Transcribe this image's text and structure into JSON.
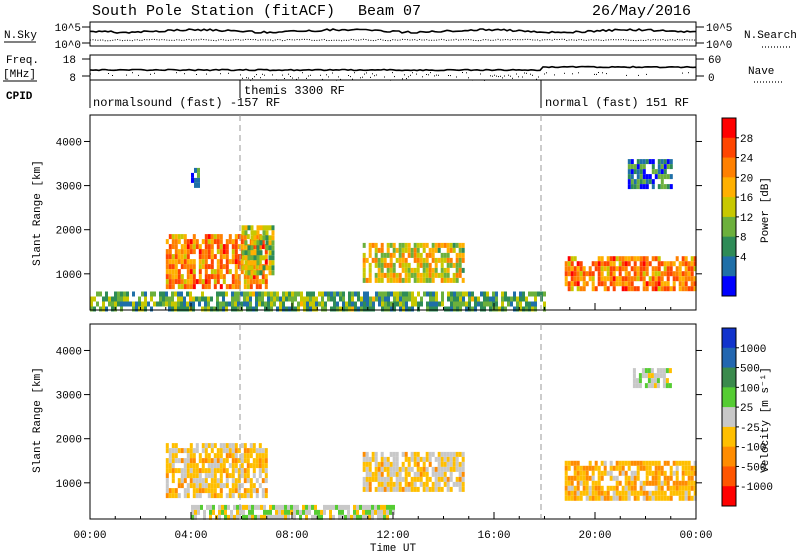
{
  "header": {
    "station": "South Pole Station (fitACF)",
    "beam": "Beam 07",
    "date": "26/May/2016"
  },
  "summary": {
    "nsky_label": "N.Sky",
    "nsky_ticks": [
      "10^5",
      "10^0"
    ],
    "nsearch_label": "N.Search",
    "nsearch_ticks": [
      "10^5",
      "10^0"
    ],
    "freq_label_1": "Freq.",
    "freq_label_2": "[MHz]",
    "freq_ticks": [
      "18",
      "8"
    ],
    "nave_label": "Nave",
    "nave_ticks": [
      "60",
      "0"
    ],
    "cpid_label": "CPID",
    "modes": [
      {
        "text": "normalsound (fast) -157 RF",
        "start_hour": 0
      },
      {
        "text": "themis 3300 RF",
        "start_hour": 6
      },
      {
        "text": "normal (fast) 151 RF",
        "start_hour": 18
      }
    ]
  },
  "axes": {
    "xlabel": "Time UT",
    "x_ticks": [
      "00:00",
      "04:00",
      "08:00",
      "12:00",
      "16:00",
      "20:00",
      "00:00"
    ],
    "ylabel": "Slant Range [km]",
    "y_ticks": [
      "1000",
      "2000",
      "3000",
      "4000"
    ]
  },
  "colorbars": {
    "power_label": "Power [dB]",
    "power_ticks": [
      "28",
      "24",
      "20",
      "16",
      "12",
      "8",
      "4"
    ],
    "power_colors": [
      "#ff0000",
      "#ff4500",
      "#ff8000",
      "#ffb000",
      "#c8c800",
      "#6cb03c",
      "#2e8b57",
      "#1f6fa8",
      "#0000ff"
    ],
    "velocity_label": "Velocity [m s⁻¹]",
    "velocity_ticks": [
      "1000",
      "500",
      "100",
      "25",
      "-25",
      "-100",
      "-500",
      "-1000"
    ],
    "velocity_colors": [
      "#1133cc",
      "#2266b0",
      "#3a8a4c",
      "#55cc33",
      "#c8c8c8",
      "#ffbf00",
      "#ff8c00",
      "#ff5500",
      "#ff0000"
    ]
  },
  "chart_data": [
    {
      "type": "heatmap",
      "title": "South Pole Station (fitACF) Beam 07 26/May/2016",
      "quantity": "Power [dB]",
      "xlabel": "Time UT",
      "ylabel": "Slant Range [km]",
      "xlim": [
        0,
        24
      ],
      "ylim": [
        180,
        4600
      ],
      "colorbar_range": [
        0,
        30
      ],
      "regions": [
        {
          "t0": 3.0,
          "t1": 7.0,
          "r0": 700,
          "r1": 1900,
          "value": 22
        },
        {
          "t0": 6.0,
          "t1": 7.2,
          "r0": 1000,
          "r1": 2100,
          "value": 14
        },
        {
          "t0": 10.8,
          "t1": 14.8,
          "r0": 800,
          "r1": 1700,
          "value": 16
        },
        {
          "t0": 18.8,
          "t1": 24.0,
          "r0": 700,
          "r1": 1400,
          "value": 22
        },
        {
          "t0": 0.0,
          "t1": 18.0,
          "r0": 200,
          "r1": 600,
          "value": 10
        },
        {
          "t0": 4.0,
          "t1": 4.3,
          "r0": 3000,
          "r1": 3400,
          "value": 6
        },
        {
          "t0": 21.3,
          "t1": 23.0,
          "r0": 3000,
          "r1": 3600,
          "value": 6
        }
      ]
    },
    {
      "type": "heatmap",
      "title": "South Pole Station (fitACF) Beam 07 26/May/2016",
      "quantity": "Velocity [m s-1]",
      "xlabel": "Time UT",
      "ylabel": "Slant Range [km]",
      "xlim": [
        0,
        24
      ],
      "ylim": [
        180,
        4600
      ],
      "colorbar_range": [
        -1000,
        1000
      ],
      "regions": [
        {
          "t0": 3.0,
          "t1": 7.0,
          "r0": 700,
          "r1": 1900,
          "value": -200
        },
        {
          "t0": 10.8,
          "t1": 14.8,
          "r0": 800,
          "r1": 1700,
          "value": -150
        },
        {
          "t0": 18.8,
          "t1": 24.0,
          "r0": 600,
          "r1": 1500,
          "value": -300
        },
        {
          "t0": 4.0,
          "t1": 12.0,
          "r0": 200,
          "r1": 500,
          "value": 0
        },
        {
          "t0": 21.5,
          "t1": 23.0,
          "r0": 3200,
          "r1": 3600,
          "value": 0
        }
      ]
    }
  ]
}
